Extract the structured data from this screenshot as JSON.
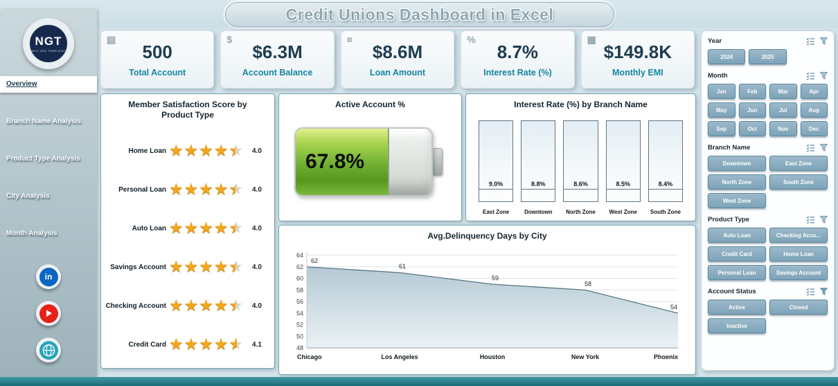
{
  "title": "Credit Unions Dashboard in Excel",
  "logo": {
    "text": "NGT",
    "subtext": "NEXT GEN TEMPLATES"
  },
  "sidebar": {
    "items": [
      {
        "label": "Overview",
        "active": true
      },
      {
        "label": "Branch Name Analysis",
        "active": false
      },
      {
        "label": "Product Type Analysis",
        "active": false
      },
      {
        "label": "City Analysis",
        "active": false
      },
      {
        "label": "Month Analysis",
        "active": false
      }
    ]
  },
  "kpis": [
    {
      "value": "500",
      "label": "Total Account",
      "icon": "ledger-icon",
      "glyph": "▤"
    },
    {
      "value": "$6.3M",
      "label": "Account Balance",
      "icon": "cash-stack-icon",
      "glyph": "$"
    },
    {
      "value": "$8.6M",
      "label": "Loan Amount",
      "icon": "money-bag-icon",
      "glyph": "¤"
    },
    {
      "value": "8.7%",
      "label": "Interest Rate (%)",
      "icon": "percent-icon",
      "glyph": "%"
    },
    {
      "value": "$149.8K",
      "label": "Monthly EMI",
      "icon": "emi-calendar-icon",
      "glyph": "▦"
    }
  ],
  "chart_data": [
    {
      "type": "rating",
      "title": "Member Satisfaction Score by Product Type",
      "categories": [
        "Home Loan",
        "Personal Loan",
        "Auto Loan",
        "Savings Account",
        "Checking Account",
        "Credit Card"
      ],
      "values": [
        4.0,
        4.0,
        4.0,
        4.0,
        4.0,
        4.1
      ],
      "value_labels": [
        "4.0",
        "4.0",
        "4.0",
        "4.0",
        "4.0",
        "4.1"
      ],
      "max": 5,
      "star_glyphs": "★★★★★"
    },
    {
      "type": "gauge",
      "title": "Active Account %",
      "value": 67.8,
      "value_label": "67.8%",
      "max": 100
    },
    {
      "type": "bar",
      "title": "Interest Rate (%) by Branch Name",
      "categories": [
        "East Zone",
        "Downtown",
        "North Zone",
        "West Zone",
        "South Zone"
      ],
      "values": [
        9.0,
        8.8,
        8.6,
        8.5,
        8.4
      ],
      "value_labels": [
        "9.0%",
        "8.8%",
        "8.6%",
        "8.5%",
        "8.4%"
      ]
    },
    {
      "type": "area",
      "title": "Avg.Delinquency Days by City",
      "categories": [
        "Chicago",
        "Los Angeles",
        "Houston",
        "New York",
        "Phoenix"
      ],
      "values": [
        62,
        61,
        59,
        58,
        54
      ],
      "ylim": [
        48,
        64
      ],
      "yticks": [
        48,
        50,
        52,
        54,
        56,
        58,
        60,
        62,
        64
      ],
      "grid": true
    }
  ],
  "filters": {
    "panels": [
      {
        "label": "Year",
        "options": [
          "2024",
          "2025"
        ]
      },
      {
        "label": "Month",
        "options": [
          "Jan",
          "Feb",
          "Mar",
          "Apr",
          "May",
          "Jun",
          "Jul",
          "Aug",
          "Sep",
          "Oct",
          "Nov",
          "Dec"
        ]
      },
      {
        "label": "Branch Name",
        "options": [
          "Downtown",
          "East Zone",
          "North Zone",
          "South Zone",
          "West Zone"
        ]
      },
      {
        "label": "Product Type",
        "options": [
          "Auto Loan",
          "Checking Acco...",
          "Credit Card",
          "Home Loan",
          "Personal Loan",
          "Savings Account"
        ]
      },
      {
        "label": "Account Status",
        "options": [
          "Active",
          "Closed",
          "Inactive"
        ]
      }
    ]
  }
}
